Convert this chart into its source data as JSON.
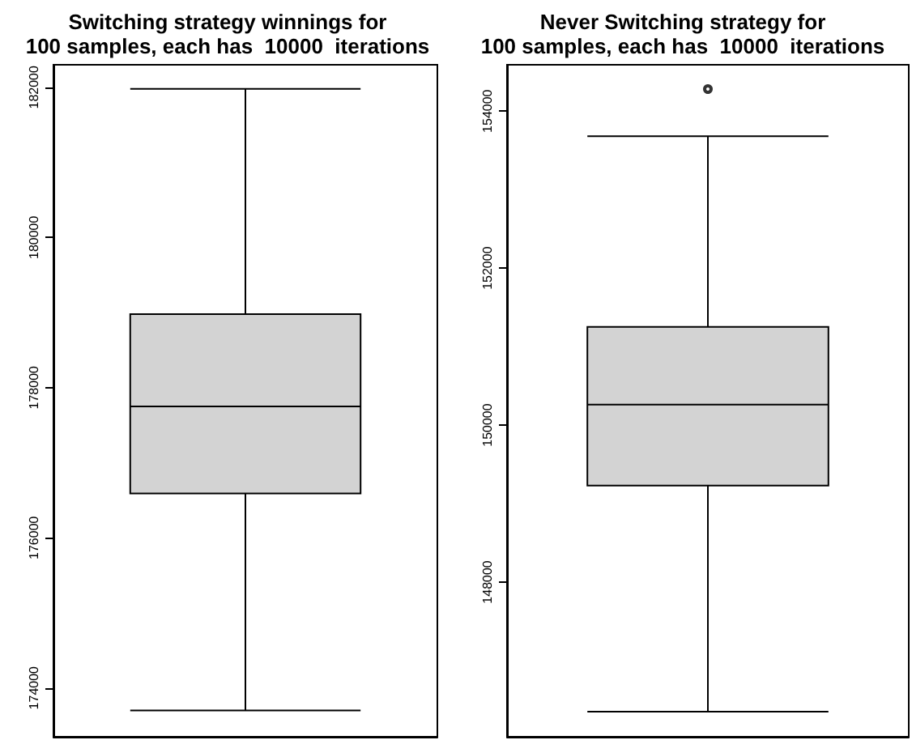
{
  "chart_data": [
    {
      "type": "box",
      "title": "Switching strategy winnings for\n100 samples, each has  10000  iterations",
      "categories": [
        null
      ],
      "boxes": [
        {
          "low": 173700,
          "q1": 176590,
          "median": 177750,
          "q3": 178980,
          "high": 181980
        }
      ],
      "color": "#d3d3d3",
      "ylim": [
        173350,
        182300
      ],
      "yticks": [
        174000,
        176000,
        178000,
        180000,
        182000
      ],
      "tick_labels": "y",
      "grid": false
    },
    {
      "type": "box",
      "title": "Never Switching strategy for\n100 samples, each has  10000  iterations",
      "categories": [
        null
      ],
      "boxes": [
        {
          "low": 146350,
          "q1": 149230,
          "median": 150260,
          "q3": 151250,
          "high": 153680,
          "outliers": [
            154280
          ]
        }
      ],
      "color": "#d3d3d3",
      "ylim": [
        146030,
        154590
      ],
      "yticks": [
        148000,
        150000,
        152000,
        154000
      ],
      "tick_labels": "y",
      "grid": false
    }
  ]
}
